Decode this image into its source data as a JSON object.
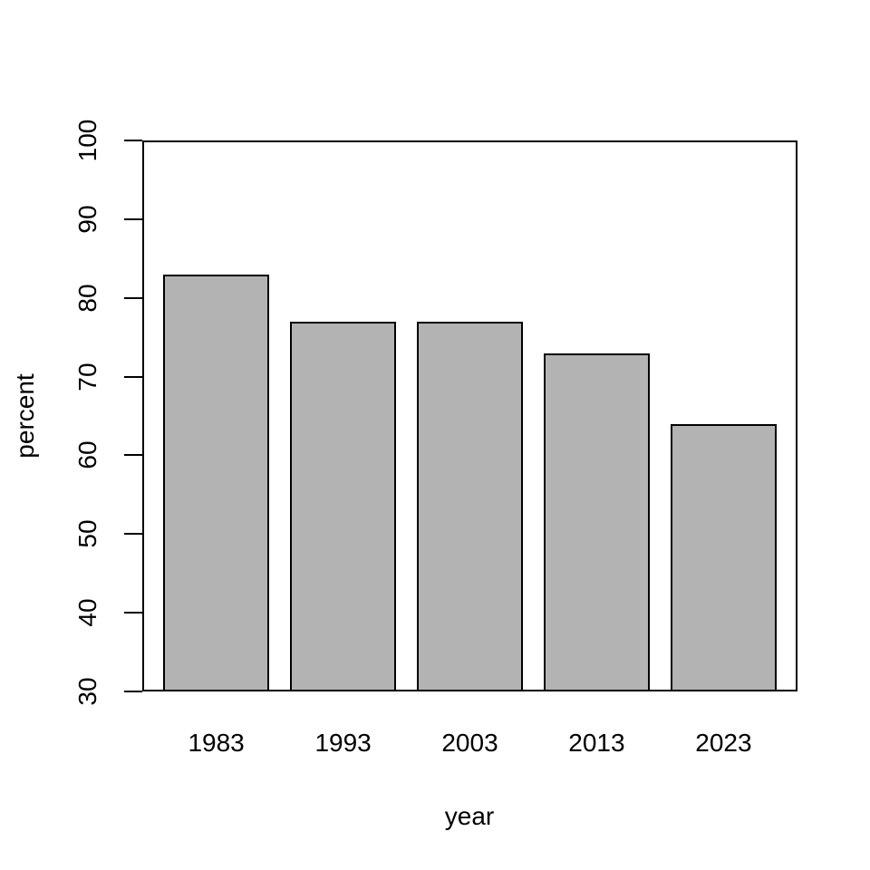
{
  "chart_data": {
    "type": "bar",
    "title": "",
    "categories": [
      "1983",
      "1993",
      "2003",
      "2013",
      "2023"
    ],
    "values": [
      83,
      77,
      77,
      73,
      64
    ],
    "xlabel": "year",
    "ylabel": "percent",
    "ylim": [
      30,
      100
    ],
    "yticks": [
      30,
      40,
      50,
      60,
      70,
      80,
      90,
      100
    ],
    "grid": false,
    "legend": null,
    "bar_fill_color": "#b3b3b3",
    "bar_border_color": "#000000",
    "axis_color": "#000000",
    "background_color": "#ffffff",
    "bar_space_ratio": 0.2
  }
}
